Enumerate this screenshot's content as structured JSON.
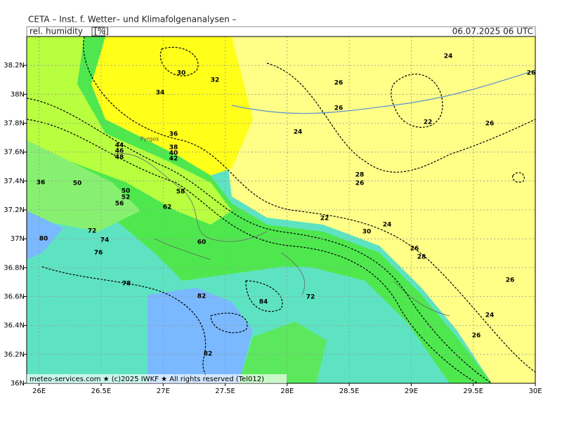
{
  "header": {
    "title": "CETA – Inst. f. Wetter– und Klimafolgenanalysen –",
    "parameter": "rel. humidity",
    "unit": "[%]",
    "valid_time": "06.07.2025 06 UTC"
  },
  "footer": "meteo-services.com ★ (c)2025 IWKF ★ All rights reserved (Tel012)",
  "map": {
    "lonlim": [
      25.9,
      30
    ],
    "latlim": [
      36,
      38.4
    ],
    "lon_ticks": [
      {
        "value": 26,
        "label": "26E"
      },
      {
        "value": 26.5,
        "label": "26.5E"
      },
      {
        "value": 27,
        "label": "27E"
      },
      {
        "value": 27.5,
        "label": "27.5E"
      },
      {
        "value": 28,
        "label": "28E"
      },
      {
        "value": 28.5,
        "label": "28.5E"
      },
      {
        "value": 29,
        "label": "29E"
      },
      {
        "value": 29.5,
        "label": "29.5E"
      },
      {
        "value": 30,
        "label": "30E"
      }
    ],
    "lat_ticks": [
      {
        "value": 36,
        "label": "36N"
      },
      {
        "value": 36.2,
        "label": "36.2N"
      },
      {
        "value": 36.4,
        "label": "36.4N"
      },
      {
        "value": 36.6,
        "label": "36.6N"
      },
      {
        "value": 36.8,
        "label": "36.8N"
      },
      {
        "value": 37,
        "label": "37N"
      },
      {
        "value": 37.2,
        "label": "37.2N"
      },
      {
        "value": 37.4,
        "label": "37.4N"
      },
      {
        "value": 37.6,
        "label": "37.6N"
      },
      {
        "value": 37.8,
        "label": "37.8N"
      },
      {
        "value": 38,
        "label": "38N"
      },
      {
        "value": 38.2,
        "label": "38.2N"
      }
    ],
    "place_labels": [
      "Pyrgos"
    ],
    "contour_labels": [
      "30",
      "32",
      "34",
      "36",
      "38",
      "40",
      "42",
      "44",
      "46",
      "48",
      "50",
      "52",
      "56",
      "58",
      "62",
      "72",
      "74",
      "76",
      "78",
      "80",
      "82",
      "84",
      "82",
      "72",
      "24",
      "26",
      "26",
      "26",
      "22",
      "24",
      "26",
      "28",
      "26",
      "22",
      "24",
      "26",
      "28",
      "26",
      "24",
      "26",
      "30",
      "60",
      "36",
      "50"
    ]
  }
}
